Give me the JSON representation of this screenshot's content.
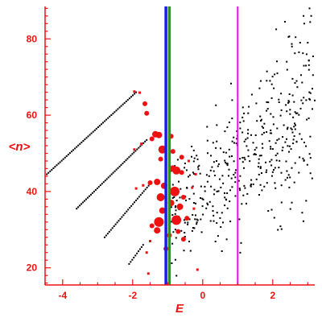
{
  "chart_data": {
    "type": "scatter",
    "xlabel": "E",
    "ylabel": "<n>",
    "xlim": [
      -4.5,
      3.2
    ],
    "ylim": [
      15.5,
      88.5
    ],
    "x_ticks": [
      -4,
      -2,
      0,
      2
    ],
    "y_ticks": [
      20,
      40,
      60,
      80
    ],
    "grid": false,
    "colors": {
      "axis": "#ee1111",
      "tick_labels": "#ee1111",
      "curves": "#000000",
      "cloud": "#000000",
      "red_points": "#ee1111",
      "line_blue": "#1a1aee",
      "line_green": "#1c9c1c",
      "line_magenta": "#ff00ff"
    },
    "vertical_lines": [
      {
        "x": -1.05,
        "color": "#1a1aee"
      },
      {
        "x": -0.95,
        "color": "#1c9c1c"
      },
      {
        "x": 1.0,
        "color": "#ff00ff"
      }
    ],
    "curves": [
      {
        "x_start": -4.45,
        "y_start": 44.5,
        "x_peak": -1.9,
        "y_peak": 66.0,
        "n": 55
      },
      {
        "x_start": -3.6,
        "y_start": 35.5,
        "x_peak": -1.6,
        "y_peak": 53.5,
        "n": 45
      },
      {
        "x_start": -2.8,
        "y_start": 28.0,
        "x_peak": -1.5,
        "y_peak": 42.0,
        "n": 30
      },
      {
        "x_start": -2.1,
        "y_start": 21.0,
        "x_peak": -1.7,
        "y_peak": 26.0,
        "n": 10
      }
    ],
    "red_points": [
      [
        -1.95,
        66.2,
        2
      ],
      [
        -1.8,
        65.9,
        2
      ],
      [
        -1.65,
        63.0,
        3
      ],
      [
        -1.6,
        60.5,
        3
      ],
      [
        -1.35,
        55.0,
        4
      ],
      [
        -1.25,
        54.8,
        4
      ],
      [
        -1.15,
        51.0,
        5
      ],
      [
        -1.2,
        48.5,
        3
      ],
      [
        -1.45,
        53.8,
        3
      ],
      [
        -1.75,
        52.5,
        2
      ],
      [
        -1.95,
        51.0,
        2
      ],
      [
        -1.3,
        42.5,
        4
      ],
      [
        -1.5,
        42.3,
        3
      ],
      [
        -1.1,
        41.5,
        4
      ],
      [
        -1.7,
        41.6,
        2
      ],
      [
        -1.9,
        40.8,
        2
      ],
      [
        -1.2,
        38.5,
        5
      ],
      [
        -1.15,
        35.0,
        4
      ],
      [
        -1.25,
        32.0,
        6
      ],
      [
        -1.3,
        29.8,
        4
      ],
      [
        -1.45,
        31.0,
        3
      ],
      [
        -1.5,
        27.0,
        2
      ],
      [
        -1.6,
        24.0,
        2
      ],
      [
        -1.55,
        18.5,
        2
      ],
      [
        -0.85,
        46.0,
        4
      ],
      [
        -0.75,
        45.5,
        5
      ],
      [
        -0.6,
        45.0,
        3
      ],
      [
        -0.8,
        40.0,
        6
      ],
      [
        -0.75,
        32.5,
        6
      ],
      [
        -0.65,
        36.0,
        4
      ],
      [
        -0.55,
        38.5,
        3
      ],
      [
        -0.9,
        37.0,
        4
      ],
      [
        -0.7,
        29.5,
        3
      ],
      [
        -0.55,
        27.5,
        3
      ],
      [
        -0.45,
        33.0,
        3
      ],
      [
        -0.3,
        41.0,
        2
      ],
      [
        -0.2,
        44.5,
        2
      ],
      [
        -0.6,
        49.0,
        3
      ],
      [
        -0.9,
        54.5,
        3
      ],
      [
        -0.85,
        50.5,
        3
      ],
      [
        -0.4,
        48.0,
        2
      ],
      [
        -0.25,
        35.5,
        2
      ],
      [
        -0.15,
        19.5,
        2
      ],
      [
        -1.05,
        25.0,
        3
      ],
      [
        -0.95,
        28.5,
        3
      ]
    ],
    "cloud": {
      "n": 430,
      "x_range": [
        -0.9,
        3.2
      ],
      "y_at_x_min": 35.0,
      "y_at_x_max": 60.0,
      "spread": 8.5
    },
    "cloud_outliers": [
      [
        3.05,
        88.0
      ],
      [
        3.1,
        86.0
      ],
      [
        2.45,
        80.5
      ],
      [
        2.55,
        78.0
      ],
      [
        2.75,
        76.5
      ],
      [
        2.4,
        74.0
      ],
      [
        2.95,
        73.0
      ],
      [
        1.55,
        58.5
      ],
      [
        1.3,
        60.5
      ],
      [
        2.1,
        82.5
      ],
      [
        3.15,
        70.5
      ],
      [
        2.9,
        84.0
      ],
      [
        2.35,
        84.5
      ],
      [
        3.0,
        79.0
      ]
    ]
  }
}
